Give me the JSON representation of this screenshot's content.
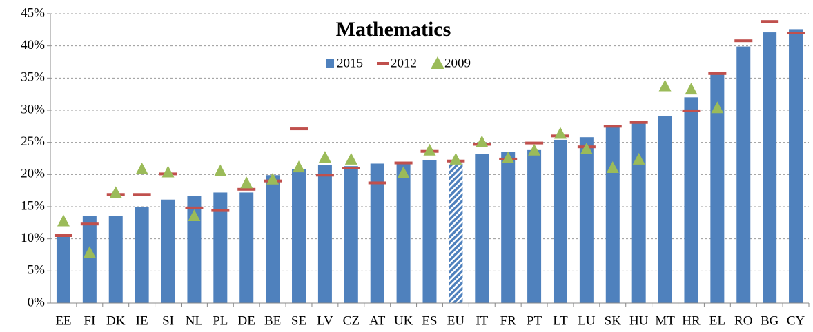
{
  "chart_data": {
    "type": "bar",
    "title": "Mathematics",
    "categories": [
      "EE",
      "FI",
      "DK",
      "IE",
      "SI",
      "NL",
      "PL",
      "DE",
      "BE",
      "SE",
      "LV",
      "CZ",
      "AT",
      "UK",
      "ES",
      "EU",
      "IT",
      "FR",
      "PT",
      "LT",
      "LU",
      "SK",
      "HU",
      "MT",
      "HR",
      "EL",
      "RO",
      "BG",
      "CY"
    ],
    "hatched": [
      "EU"
    ],
    "series": [
      {
        "name": "2015",
        "marker": "bar",
        "color": "#4f81bd",
        "values": [
          10.6,
          13.6,
          13.6,
          15.0,
          16.1,
          16.7,
          17.2,
          17.2,
          19.9,
          20.8,
          21.5,
          21.3,
          21.7,
          21.8,
          22.2,
          22.2,
          23.2,
          23.5,
          23.8,
          25.4,
          25.8,
          27.7,
          28.0,
          29.1,
          32.0,
          35.8,
          39.9,
          42.1,
          42.6
        ]
      },
      {
        "name": "2012",
        "marker": "dash",
        "color": "#c0504d",
        "values": [
          10.5,
          12.3,
          16.9,
          16.9,
          20.1,
          14.8,
          14.4,
          17.7,
          19.0,
          27.1,
          19.9,
          21.0,
          18.7,
          21.8,
          23.6,
          22.1,
          24.7,
          22.4,
          24.9,
          26.0,
          24.3,
          27.5,
          28.1,
          null,
          29.9,
          35.7,
          40.8,
          43.8,
          42.0
        ]
      },
      {
        "name": "2009",
        "marker": "triangle",
        "color": "#9bbb59",
        "values": [
          12.7,
          7.8,
          17.1,
          20.8,
          20.3,
          13.5,
          20.5,
          18.6,
          19.2,
          21.1,
          22.6,
          22.3,
          null,
          20.2,
          23.7,
          22.3,
          25.0,
          22.5,
          23.7,
          26.3,
          23.9,
          21.0,
          22.3,
          33.7,
          33.2,
          30.3,
          null,
          null,
          null
        ]
      }
    ],
    "ylim": [
      0,
      45
    ],
    "yticks": [
      {
        "value": 0,
        "label": "0%"
      },
      {
        "value": 5,
        "label": "5%"
      },
      {
        "value": 10,
        "label": "10%"
      },
      {
        "value": 15,
        "label": "15%"
      },
      {
        "value": 20,
        "label": "20%"
      },
      {
        "value": 25,
        "label": "25%"
      },
      {
        "value": 30,
        "label": "30%"
      },
      {
        "value": 35,
        "label": "35%"
      },
      {
        "value": 40,
        "label": "40%"
      },
      {
        "value": 45,
        "label": "45%"
      }
    ],
    "grid": true
  }
}
